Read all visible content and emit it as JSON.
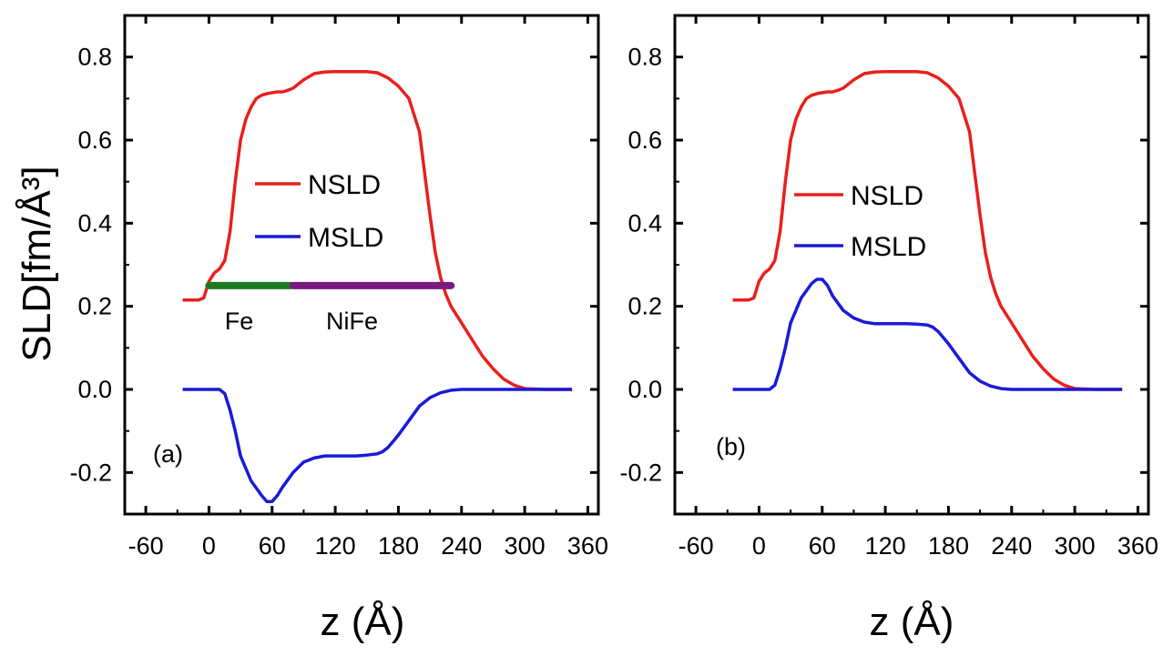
{
  "figure": {
    "ylabel": "SLD[fm/Å³]"
  },
  "chart_data": [
    {
      "type": "line",
      "panel_label": "(a)",
      "xlabel": "z (Å)",
      "ylabel": "SLD[fm/Å³]",
      "xlim": [
        -80,
        370
      ],
      "ylim": [
        -0.3,
        0.9
      ],
      "xticks": [
        -60,
        0,
        60,
        120,
        180,
        240,
        300,
        360
      ],
      "yticks": [
        -0.2,
        0.0,
        0.2,
        0.4,
        0.6,
        0.8
      ],
      "legend": {
        "position": "center",
        "entries": [
          "NSLD",
          "MSLD"
        ]
      },
      "series": [
        {
          "name": "NSLD",
          "color": "#e8201c",
          "x": [
            -25,
            -10,
            -5,
            0,
            5,
            10,
            15,
            20,
            25,
            30,
            35,
            40,
            45,
            50,
            55,
            60,
            65,
            70,
            75,
            80,
            90,
            100,
            110,
            120,
            130,
            140,
            150,
            160,
            170,
            180,
            190,
            200,
            205,
            210,
            215,
            220,
            225,
            230,
            240,
            250,
            260,
            270,
            280,
            290,
            300,
            320,
            345
          ],
          "y": [
            0.215,
            0.215,
            0.22,
            0.26,
            0.28,
            0.29,
            0.31,
            0.38,
            0.5,
            0.6,
            0.65,
            0.68,
            0.7,
            0.708,
            0.712,
            0.714,
            0.716,
            0.716,
            0.72,
            0.725,
            0.745,
            0.76,
            0.764,
            0.765,
            0.765,
            0.765,
            0.765,
            0.762,
            0.75,
            0.73,
            0.7,
            0.62,
            0.52,
            0.42,
            0.33,
            0.27,
            0.23,
            0.2,
            0.16,
            0.12,
            0.08,
            0.05,
            0.025,
            0.01,
            0.002,
            0.0,
            0.0
          ]
        },
        {
          "name": "MSLD",
          "color": "#1a1ad8",
          "x": [
            -25,
            0,
            10,
            15,
            20,
            25,
            30,
            40,
            50,
            55,
            60,
            65,
            70,
            80,
            90,
            100,
            110,
            120,
            130,
            140,
            150,
            160,
            165,
            170,
            175,
            180,
            190,
            200,
            210,
            220,
            230,
            240,
            260,
            300,
            345
          ],
          "y": [
            0.0,
            0.0,
            0.0,
            -0.01,
            -0.05,
            -0.1,
            -0.16,
            -0.22,
            -0.255,
            -0.27,
            -0.27,
            -0.255,
            -0.235,
            -0.2,
            -0.175,
            -0.165,
            -0.16,
            -0.16,
            -0.16,
            -0.16,
            -0.158,
            -0.155,
            -0.15,
            -0.14,
            -0.125,
            -0.11,
            -0.075,
            -0.04,
            -0.02,
            -0.008,
            -0.002,
            0.0,
            0.0,
            0.0,
            0.0
          ]
        }
      ],
      "layers": [
        {
          "name": "Fe",
          "color": "#1f7a1f",
          "x": [
            0,
            78
          ],
          "y": 0.25
        },
        {
          "name": "NiFe",
          "color": "#7a1a80",
          "x": [
            80,
            230
          ],
          "y": 0.25
        }
      ]
    },
    {
      "type": "line",
      "panel_label": "(b)",
      "xlabel": "z (Å)",
      "ylabel": "",
      "xlim": [
        -80,
        370
      ],
      "ylim": [
        -0.3,
        0.9
      ],
      "xticks": [
        -60,
        0,
        60,
        120,
        180,
        240,
        300,
        360
      ],
      "yticks": [
        -0.2,
        0.0,
        0.2,
        0.4,
        0.6,
        0.8
      ],
      "legend": {
        "position": "center",
        "entries": [
          "NSLD",
          "MSLD"
        ]
      },
      "series": [
        {
          "name": "NSLD",
          "color": "#e8201c",
          "x": [
            -25,
            -10,
            -5,
            0,
            5,
            10,
            15,
            20,
            25,
            30,
            35,
            40,
            45,
            50,
            55,
            60,
            65,
            70,
            75,
            80,
            90,
            100,
            110,
            120,
            130,
            140,
            150,
            160,
            170,
            180,
            190,
            200,
            205,
            210,
            215,
            220,
            225,
            230,
            240,
            250,
            260,
            270,
            280,
            290,
            300,
            320,
            345
          ],
          "y": [
            0.215,
            0.215,
            0.22,
            0.26,
            0.28,
            0.29,
            0.31,
            0.38,
            0.5,
            0.6,
            0.65,
            0.68,
            0.7,
            0.708,
            0.712,
            0.714,
            0.716,
            0.716,
            0.72,
            0.725,
            0.745,
            0.76,
            0.764,
            0.765,
            0.765,
            0.765,
            0.765,
            0.762,
            0.75,
            0.73,
            0.7,
            0.62,
            0.52,
            0.42,
            0.33,
            0.27,
            0.23,
            0.2,
            0.16,
            0.12,
            0.08,
            0.05,
            0.025,
            0.01,
            0.002,
            0.0,
            0.0
          ]
        },
        {
          "name": "MSLD",
          "color": "#1a1ad8",
          "x": [
            -25,
            0,
            10,
            15,
            20,
            25,
            30,
            40,
            50,
            55,
            60,
            65,
            70,
            80,
            90,
            100,
            110,
            120,
            130,
            140,
            150,
            160,
            165,
            170,
            175,
            180,
            190,
            200,
            210,
            220,
            230,
            240,
            260,
            300,
            345
          ],
          "y": [
            0.0,
            0.0,
            0.0,
            0.01,
            0.05,
            0.1,
            0.16,
            0.22,
            0.255,
            0.265,
            0.265,
            0.25,
            0.225,
            0.19,
            0.172,
            0.162,
            0.158,
            0.158,
            0.158,
            0.158,
            0.157,
            0.155,
            0.15,
            0.14,
            0.125,
            0.11,
            0.075,
            0.04,
            0.02,
            0.008,
            0.002,
            0.0,
            0.0,
            0.0,
            0.0
          ]
        }
      ]
    }
  ]
}
